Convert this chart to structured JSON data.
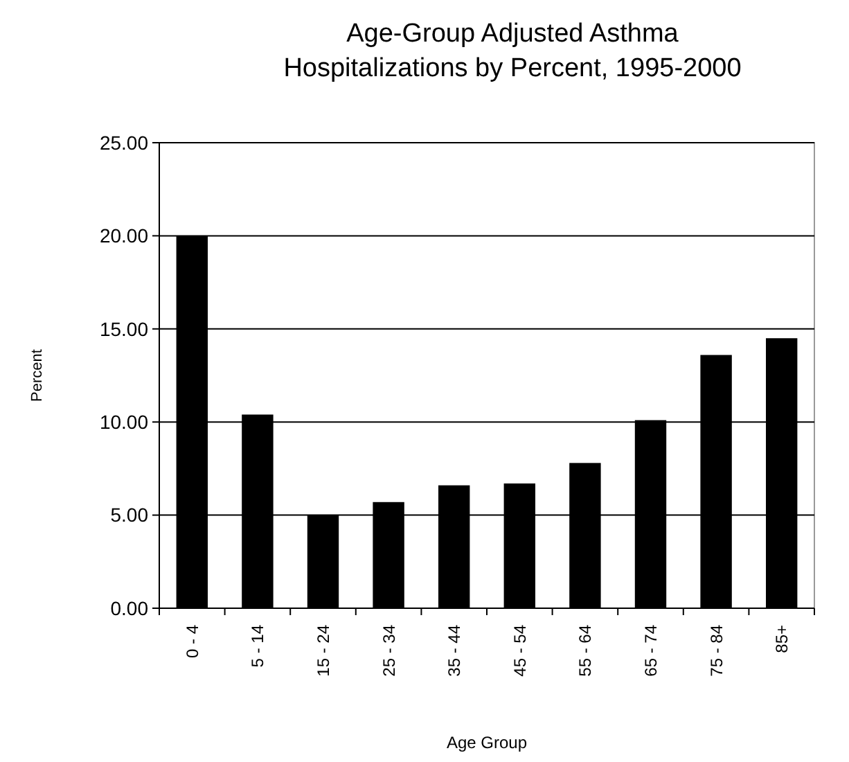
{
  "chart_data": {
    "type": "bar",
    "title": "Age-Group Adjusted Asthma\nHospitalizations by Percent, 1995-2000",
    "xlabel": "Age Group",
    "ylabel": "Percent",
    "categories": [
      "0 - 4",
      "5 - 14",
      "15 - 24",
      "25 - 34",
      "35 - 44",
      "45 - 54",
      "55 - 64",
      "65 - 74",
      "75 - 84",
      "85+"
    ],
    "values": [
      20.0,
      10.4,
      5.0,
      5.7,
      6.6,
      6.7,
      7.8,
      10.1,
      13.6,
      14.5
    ],
    "color": "#000000",
    "ylim": [
      0,
      25
    ],
    "yticks": [
      {
        "value": 0,
        "label": "0.00"
      },
      {
        "value": 5,
        "label": "5.00"
      },
      {
        "value": 10,
        "label": "10.00"
      },
      {
        "value": 15,
        "label": "15.00"
      },
      {
        "value": 20,
        "label": "20.00"
      },
      {
        "value": 25,
        "label": "25.00"
      }
    ],
    "grid": "y"
  }
}
